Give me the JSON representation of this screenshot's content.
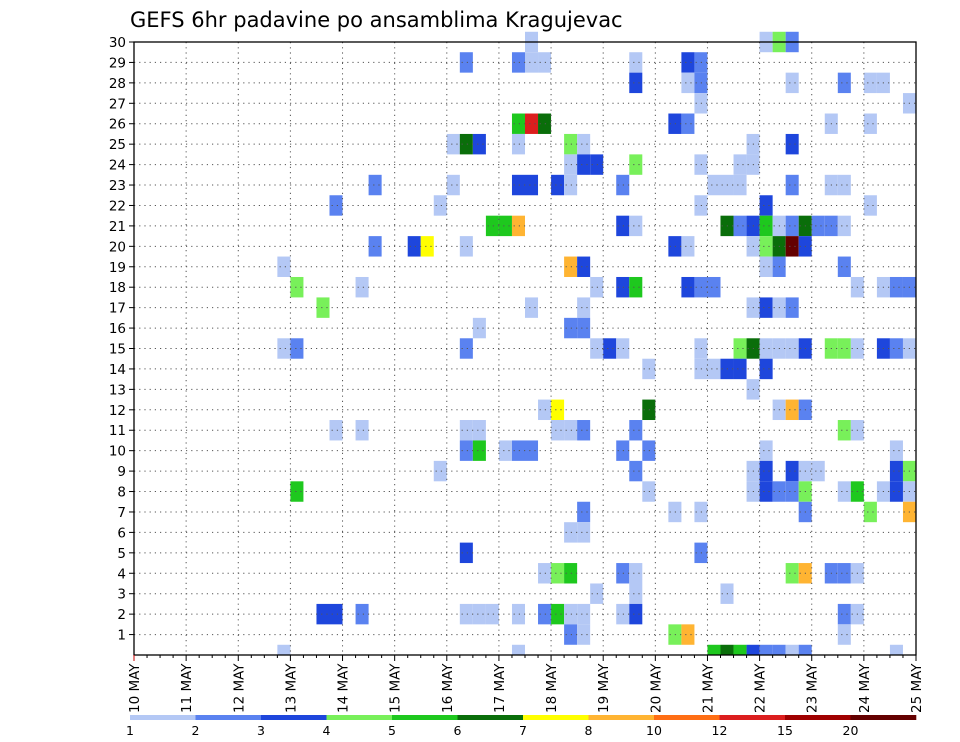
{
  "chart_data": {
    "type": "heatmap",
    "title": "GEFS 6hr padavine po ansamblima Kragujevac",
    "xlabel": "",
    "ylabel": "",
    "x_range_days": [
      10,
      25
    ],
    "x_ticks": [
      "10 MAY",
      "11 MAY",
      "12 MAY",
      "13 MAY",
      "14 MAY",
      "15 MAY",
      "16 MAY",
      "17 MAY",
      "18 MAY",
      "19 MAY",
      "20 MAY",
      "21 MAY",
      "22 MAY",
      "23 MAY",
      "24 MAY",
      "25 MAY"
    ],
    "y_ticks": [
      "1",
      "2",
      "3",
      "4",
      "5",
      "6",
      "7",
      "8",
      "9",
      "10",
      "11",
      "12",
      "13",
      "14",
      "15",
      "16",
      "17",
      "18",
      "19",
      "20",
      "21",
      "22",
      "23",
      "24",
      "25",
      "26",
      "27",
      "28",
      "29",
      "30"
    ],
    "y_range": [
      0,
      30
    ],
    "grid": true,
    "time_step_hours": 6,
    "color_levels": [
      1,
      2,
      3,
      4,
      5,
      6,
      7,
      8,
      10,
      12,
      15,
      20
    ],
    "color_labels": [
      "1",
      "2",
      "3",
      "4",
      "5",
      "6",
      "7",
      "8",
      "10",
      "12",
      "15",
      "20"
    ],
    "colors": [
      "#b4c8f5",
      "#5a82f0",
      "#1e46dc",
      "#78f05a",
      "#1ec81e",
      "#0a6e0a",
      "#ffff00",
      "#ffb432",
      "#ff6e14",
      "#dc1e1e",
      "#a00000",
      "#640000"
    ],
    "cells": [
      [
        "30",
        [
          [
            17.5,
            1
          ],
          [
            22.0,
            1
          ],
          [
            22.25,
            4
          ],
          [
            22.5,
            2
          ]
        ]
      ],
      [
        "29",
        [
          [
            16.25,
            2
          ],
          [
            17.25,
            2
          ],
          [
            17.5,
            1
          ],
          [
            17.75,
            1
          ],
          [
            19.5,
            1
          ],
          [
            20.5,
            3
          ],
          [
            20.75,
            2
          ]
        ]
      ],
      [
        "28",
        [
          [
            19.5,
            3
          ],
          [
            20.5,
            1
          ],
          [
            20.75,
            2
          ],
          [
            22.5,
            1
          ],
          [
            23.5,
            2
          ],
          [
            24.0,
            1
          ],
          [
            24.25,
            1
          ]
        ]
      ],
      [
        "27",
        [
          [
            20.75,
            1
          ],
          [
            24.75,
            1
          ]
        ]
      ],
      [
        "26",
        [
          [
            17.25,
            5
          ],
          [
            17.5,
            10
          ],
          [
            17.75,
            6
          ],
          [
            20.25,
            3
          ],
          [
            20.5,
            2
          ],
          [
            23.25,
            1
          ],
          [
            24.0,
            1
          ]
        ]
      ],
      [
        "25",
        [
          [
            16.0,
            1
          ],
          [
            16.25,
            6
          ],
          [
            16.5,
            3
          ],
          [
            17.25,
            1
          ],
          [
            18.25,
            4
          ],
          [
            18.5,
            1
          ],
          [
            21.75,
            1
          ],
          [
            22.5,
            3
          ]
        ]
      ],
      [
        "24",
        [
          [
            18.25,
            1
          ],
          [
            18.5,
            3
          ],
          [
            18.75,
            3
          ],
          [
            19.5,
            4
          ],
          [
            20.75,
            1
          ],
          [
            21.5,
            1
          ],
          [
            21.75,
            1
          ]
        ]
      ],
      [
        "23",
        [
          [
            14.5,
            2
          ],
          [
            16.0,
            1
          ],
          [
            17.25,
            3
          ],
          [
            17.5,
            3
          ],
          [
            18.0,
            3
          ],
          [
            18.25,
            1
          ],
          [
            19.25,
            2
          ],
          [
            21.0,
            1
          ],
          [
            21.25,
            1
          ],
          [
            21.5,
            1
          ],
          [
            22.5,
            2
          ],
          [
            23.25,
            1
          ],
          [
            23.5,
            1
          ]
        ]
      ],
      [
        "22",
        [
          [
            13.75,
            2
          ],
          [
            15.75,
            1
          ],
          [
            20.75,
            1
          ],
          [
            22.0,
            3
          ],
          [
            24.0,
            1
          ]
        ]
      ],
      [
        "21",
        [
          [
            16.75,
            5
          ],
          [
            17.0,
            5
          ],
          [
            17.25,
            8
          ],
          [
            19.25,
            3
          ],
          [
            19.5,
            1
          ],
          [
            21.25,
            6
          ],
          [
            21.5,
            2
          ],
          [
            21.75,
            3
          ],
          [
            22.0,
            5
          ],
          [
            22.25,
            1
          ],
          [
            22.5,
            2
          ],
          [
            22.75,
            6
          ],
          [
            23.0,
            2
          ],
          [
            23.25,
            2
          ],
          [
            23.5,
            1
          ]
        ]
      ],
      [
        "20",
        [
          [
            14.5,
            2
          ],
          [
            15.25,
            3
          ],
          [
            15.5,
            7
          ],
          [
            16.25,
            1
          ],
          [
            20.25,
            3
          ],
          [
            20.5,
            1
          ],
          [
            21.75,
            1
          ],
          [
            22.0,
            4
          ],
          [
            22.25,
            6
          ],
          [
            22.5,
            12
          ],
          [
            22.75,
            3
          ]
        ]
      ],
      [
        "19",
        [
          [
            12.75,
            1
          ],
          [
            18.25,
            8
          ],
          [
            18.5,
            3
          ],
          [
            22.0,
            1
          ],
          [
            22.25,
            2
          ],
          [
            23.5,
            2
          ]
        ]
      ],
      [
        "18",
        [
          [
            13.0,
            4
          ],
          [
            14.25,
            1
          ],
          [
            18.75,
            1
          ],
          [
            19.25,
            3
          ],
          [
            19.5,
            5
          ],
          [
            20.5,
            3
          ],
          [
            20.75,
            2
          ],
          [
            21.0,
            2
          ],
          [
            23.75,
            1
          ],
          [
            24.25,
            1
          ],
          [
            24.5,
            2
          ],
          [
            24.75,
            2
          ]
        ]
      ],
      [
        "17",
        [
          [
            13.5,
            4
          ],
          [
            17.5,
            1
          ],
          [
            18.5,
            1
          ],
          [
            21.75,
            1
          ],
          [
            22.0,
            3
          ],
          [
            22.25,
            1
          ],
          [
            22.5,
            2
          ]
        ]
      ],
      [
        "16",
        [
          [
            16.5,
            1
          ],
          [
            18.25,
            2
          ],
          [
            18.5,
            2
          ]
        ]
      ],
      [
        "15",
        [
          [
            12.75,
            1
          ],
          [
            13.0,
            2
          ],
          [
            16.25,
            2
          ],
          [
            18.75,
            1
          ],
          [
            19.0,
            3
          ],
          [
            19.25,
            1
          ],
          [
            20.75,
            1
          ],
          [
            21.5,
            4
          ],
          [
            21.75,
            6
          ],
          [
            22.0,
            1
          ],
          [
            22.25,
            1
          ],
          [
            22.5,
            1
          ],
          [
            22.75,
            3
          ],
          [
            23.25,
            4
          ],
          [
            23.5,
            4
          ],
          [
            23.75,
            1
          ],
          [
            24.25,
            3
          ],
          [
            24.5,
            2
          ],
          [
            24.75,
            1
          ]
        ]
      ],
      [
        "14",
        [
          [
            20.75,
            1
          ],
          [
            21.0,
            1
          ],
          [
            21.25,
            3
          ],
          [
            21.5,
            3
          ],
          [
            22.0,
            3
          ],
          [
            19.75,
            1
          ]
        ]
      ],
      [
        "13",
        [
          [
            21.75,
            1
          ]
        ]
      ],
      [
        "12",
        [
          [
            17.75,
            1
          ],
          [
            18.0,
            7
          ],
          [
            19.75,
            6
          ],
          [
            22.25,
            1
          ],
          [
            22.5,
            8
          ],
          [
            22.75,
            2
          ]
        ]
      ],
      [
        "11",
        [
          [
            13.75,
            1
          ],
          [
            14.25,
            1
          ],
          [
            16.25,
            1
          ],
          [
            16.5,
            1
          ],
          [
            18.0,
            1
          ],
          [
            18.25,
            1
          ],
          [
            18.5,
            2
          ],
          [
            19.5,
            2
          ],
          [
            23.5,
            4
          ],
          [
            23.75,
            1
          ]
        ]
      ],
      [
        "10",
        [
          [
            16.25,
            2
          ],
          [
            16.5,
            5
          ],
          [
            17.0,
            1
          ],
          [
            17.25,
            2
          ],
          [
            17.5,
            2
          ],
          [
            19.25,
            2
          ],
          [
            19.75,
            2
          ],
          [
            22.0,
            1
          ],
          [
            24.5,
            1
          ]
        ]
      ],
      [
        "9",
        [
          [
            15.75,
            1
          ],
          [
            19.5,
            2
          ],
          [
            21.75,
            1
          ],
          [
            22.0,
            3
          ],
          [
            22.5,
            3
          ],
          [
            22.75,
            1
          ],
          [
            23.0,
            1
          ],
          [
            24.5,
            3
          ],
          [
            24.75,
            4
          ]
        ]
      ],
      [
        "8",
        [
          [
            13.0,
            5
          ],
          [
            19.75,
            1
          ],
          [
            21.75,
            1
          ],
          [
            22.0,
            3
          ],
          [
            22.25,
            2
          ],
          [
            22.5,
            2
          ],
          [
            22.75,
            4
          ],
          [
            23.5,
            1
          ],
          [
            23.75,
            5
          ],
          [
            24.25,
            1
          ],
          [
            24.5,
            3
          ],
          [
            24.75,
            1
          ]
        ]
      ],
      [
        "7",
        [
          [
            18.5,
            2
          ],
          [
            20.25,
            1
          ],
          [
            20.75,
            1
          ],
          [
            22.75,
            2
          ],
          [
            24.0,
            4
          ],
          [
            24.75,
            8
          ],
          [
            25.0,
            4
          ]
        ]
      ],
      [
        "6",
        [
          [
            18.25,
            1
          ],
          [
            18.5,
            1
          ]
        ]
      ],
      [
        "5",
        [
          [
            16.25,
            3
          ],
          [
            20.75,
            2
          ]
        ]
      ],
      [
        "4",
        [
          [
            17.75,
            1
          ],
          [
            18.0,
            4
          ],
          [
            18.25,
            5
          ],
          [
            19.25,
            2
          ],
          [
            19.5,
            1
          ],
          [
            22.5,
            4
          ],
          [
            22.75,
            8
          ],
          [
            23.25,
            2
          ],
          [
            23.5,
            2
          ],
          [
            23.75,
            1
          ]
        ]
      ],
      [
        "3",
        [
          [
            18.75,
            1
          ],
          [
            19.5,
            1
          ],
          [
            21.25,
            1
          ]
        ]
      ],
      [
        "2",
        [
          [
            13.5,
            3
          ],
          [
            13.75,
            3
          ],
          [
            14.25,
            2
          ],
          [
            16.25,
            1
          ],
          [
            16.5,
            1
          ],
          [
            16.75,
            1
          ],
          [
            17.25,
            1
          ],
          [
            17.75,
            2
          ],
          [
            18.0,
            5
          ],
          [
            18.25,
            1
          ],
          [
            18.5,
            1
          ],
          [
            19.25,
            1
          ],
          [
            19.5,
            3
          ],
          [
            23.5,
            2
          ],
          [
            23.75,
            1
          ]
        ]
      ],
      [
        "1",
        [
          [
            18.25,
            2
          ],
          [
            18.5,
            1
          ],
          [
            20.25,
            4
          ],
          [
            20.5,
            8
          ],
          [
            23.5,
            1
          ]
        ]
      ],
      [
        "0",
        [
          [
            12.75,
            1
          ],
          [
            17.25,
            1
          ],
          [
            21.0,
            5
          ],
          [
            21.25,
            6
          ],
          [
            21.5,
            5
          ],
          [
            21.75,
            3
          ],
          [
            22.0,
            2
          ],
          [
            22.25,
            2
          ],
          [
            22.5,
            1
          ],
          [
            22.75,
            2
          ],
          [
            24.5,
            1
          ]
        ]
      ]
    ]
  }
}
